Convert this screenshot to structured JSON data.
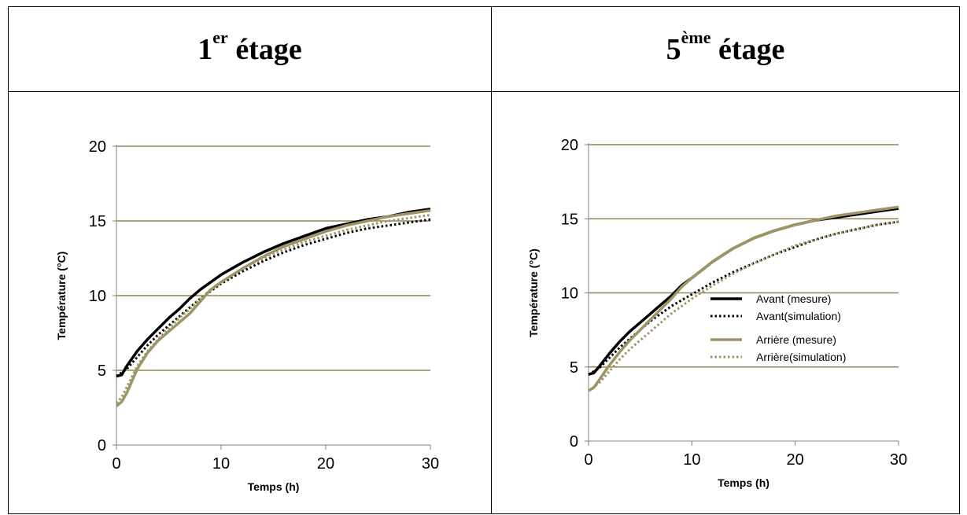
{
  "panels": [
    {
      "title_base": "1",
      "title_sup": "er",
      "title_rest": " étage"
    },
    {
      "title_base": "5",
      "title_sup": "ème",
      "title_rest": " étage"
    }
  ],
  "colors": {
    "avant": "#000000",
    "arriere": "#9e9466",
    "grid": "#8f8655",
    "axis": "#808080"
  },
  "chart_data": [
    {
      "type": "line",
      "xlabel": "Temps (h)",
      "ylabel": "Température (°C)",
      "xlim": [
        0,
        30
      ],
      "ylim": [
        0,
        20
      ],
      "xticks": [
        "0",
        "10",
        "20",
        "30"
      ],
      "yticks": [
        "0",
        "5",
        "10",
        "15",
        "20"
      ],
      "grid": "horizontal",
      "legend": "none",
      "series": [
        {
          "key": "avant_mesure",
          "style": "solid",
          "color": "avant",
          "x": [
            0,
            0.5,
            1,
            2,
            3,
            4,
            5,
            6,
            7,
            8,
            9,
            10,
            12,
            14,
            16,
            18,
            20,
            22,
            24,
            26,
            28,
            30
          ],
          "y": [
            4.6,
            4.7,
            5.3,
            6.3,
            7.1,
            7.8,
            8.5,
            9.1,
            9.8,
            10.4,
            10.9,
            11.4,
            12.2,
            12.9,
            13.5,
            14.0,
            14.5,
            14.8,
            15.1,
            15.3,
            15.6,
            15.8
          ]
        },
        {
          "key": "avant_simulation",
          "style": "dotted",
          "color": "avant",
          "x": [
            0,
            1,
            2,
            3,
            4,
            5,
            6,
            7,
            8,
            9,
            10,
            12,
            14,
            16,
            18,
            20,
            22,
            24,
            26,
            28,
            30
          ],
          "y": [
            4.6,
            5.1,
            5.9,
            6.7,
            7.4,
            8.0,
            8.6,
            9.2,
            9.8,
            10.3,
            10.8,
            11.6,
            12.3,
            12.9,
            13.4,
            13.8,
            14.2,
            14.5,
            14.7,
            14.9,
            15.1
          ]
        },
        {
          "key": "arriere_mesure",
          "style": "solid",
          "color": "arriere",
          "x": [
            0,
            0.5,
            1,
            1.5,
            2,
            3,
            4,
            5,
            6,
            7,
            8,
            9,
            10,
            12,
            14,
            16,
            18,
            20,
            22,
            24,
            26,
            28,
            30
          ],
          "y": [
            2.6,
            2.9,
            3.5,
            4.3,
            5.1,
            6.2,
            7.0,
            7.6,
            8.2,
            8.8,
            9.6,
            10.4,
            10.9,
            11.8,
            12.6,
            13.3,
            13.8,
            14.3,
            14.7,
            15.0,
            15.3,
            15.5,
            15.7
          ]
        },
        {
          "key": "arriere_simulation",
          "style": "dotted",
          "color": "arriere",
          "x": [
            0,
            0.5,
            1,
            1.5,
            2,
            3,
            4,
            5,
            6,
            7,
            8,
            9,
            10,
            12,
            14,
            16,
            18,
            20,
            22,
            24,
            26,
            28,
            30
          ],
          "y": [
            2.8,
            3.2,
            3.9,
            4.6,
            5.3,
            6.3,
            7.1,
            7.8,
            8.5,
            9.1,
            9.8,
            10.4,
            10.9,
            11.8,
            12.5,
            13.1,
            13.6,
            14.0,
            14.4,
            14.7,
            15.0,
            15.2,
            15.4
          ]
        }
      ]
    },
    {
      "type": "line",
      "xlabel": "Temps (h)",
      "ylabel": "Température (°C)",
      "xlim": [
        0,
        30
      ],
      "ylim": [
        0,
        20
      ],
      "xticks": [
        "0",
        "10",
        "20",
        "30"
      ],
      "yticks": [
        "0",
        "5",
        "10",
        "15",
        "20"
      ],
      "grid": "horizontal",
      "legend": "right",
      "series": [
        {
          "key": "avant_mesure",
          "name": "Avant (mesure)",
          "style": "solid",
          "color": "avant",
          "x": [
            0,
            0.5,
            1,
            2,
            3,
            4,
            5,
            6,
            7,
            8,
            9,
            10,
            12,
            14,
            16,
            18,
            20,
            22,
            24,
            26,
            28,
            30
          ],
          "y": [
            4.5,
            4.6,
            5.0,
            5.9,
            6.7,
            7.4,
            8.0,
            8.6,
            9.2,
            9.8,
            10.5,
            11.0,
            12.1,
            13.0,
            13.7,
            14.2,
            14.6,
            14.9,
            15.1,
            15.3,
            15.5,
            15.7
          ]
        },
        {
          "key": "avant_simulation",
          "name": "Avant(simulation)",
          "style": "dotted",
          "color": "avant",
          "x": [
            0,
            1,
            2,
            3,
            4,
            5,
            6,
            7,
            8,
            9,
            10,
            12,
            14,
            16,
            18,
            20,
            22,
            24,
            26,
            28,
            30
          ],
          "y": [
            4.5,
            4.9,
            5.6,
            6.3,
            6.9,
            7.5,
            8.1,
            8.6,
            9.1,
            9.5,
            9.9,
            10.7,
            11.4,
            12.0,
            12.6,
            13.1,
            13.6,
            14.0,
            14.3,
            14.6,
            14.8
          ]
        },
        {
          "key": "arriere_mesure",
          "name": "Arrière (mesure)",
          "style": "solid",
          "color": "arriere",
          "x": [
            0,
            0.5,
            1,
            2,
            3,
            4,
            5,
            6,
            7,
            8,
            9,
            10,
            12,
            14,
            16,
            18,
            20,
            22,
            24,
            26,
            28,
            30
          ],
          "y": [
            3.4,
            3.6,
            4.1,
            5.1,
            6.0,
            6.8,
            7.5,
            8.2,
            8.9,
            9.6,
            10.4,
            11.0,
            12.1,
            13.0,
            13.7,
            14.2,
            14.6,
            14.9,
            15.2,
            15.4,
            15.6,
            15.8
          ]
        },
        {
          "key": "arriere_simulation",
          "name": "Arrière(simulation)",
          "style": "dotted",
          "color": "arriere",
          "x": [
            0,
            1,
            2,
            3,
            4,
            5,
            6,
            7,
            8,
            9,
            10,
            12,
            14,
            16,
            18,
            20,
            22,
            24,
            26,
            28,
            30
          ],
          "y": [
            3.4,
            3.9,
            4.7,
            5.5,
            6.2,
            6.8,
            7.4,
            8.0,
            8.6,
            9.1,
            9.6,
            10.5,
            11.3,
            12.0,
            12.6,
            13.2,
            13.6,
            14.0,
            14.3,
            14.6,
            14.8
          ]
        }
      ]
    }
  ]
}
